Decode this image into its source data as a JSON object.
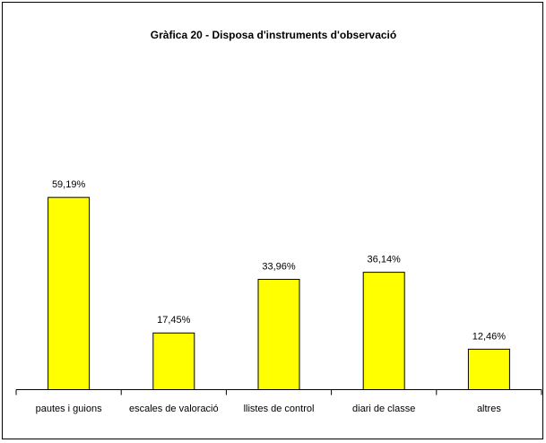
{
  "chart_data": {
    "type": "bar",
    "title": "Gràfica 20 - Disposa d'instruments d'observació",
    "categories": [
      "pautes i guions",
      "escales de valoració",
      "llistes de control",
      "diari de classe",
      "altres"
    ],
    "values": [
      59.19,
      17.45,
      33.96,
      36.14,
      12.46
    ],
    "value_labels": [
      "59,19%",
      "17,45%",
      "33,96%",
      "36,14%",
      "12,46%"
    ],
    "color": "#ffff00",
    "ylim": [
      0,
      70
    ]
  }
}
